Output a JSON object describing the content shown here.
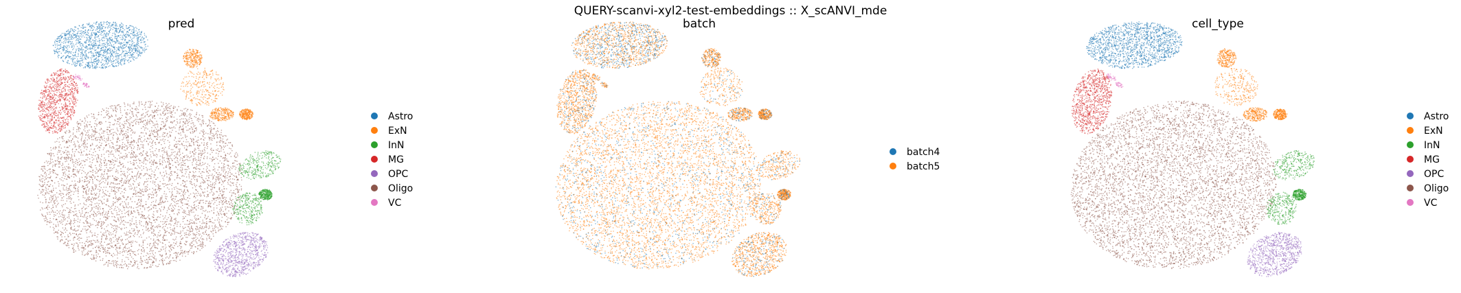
{
  "figure": {
    "suptitle": "QUERY-scanvi-xyl2-test-embeddings :: X_scANVI_mde"
  },
  "colors": {
    "Astro": "#1f77b4",
    "ExN": "#ff7f0e",
    "InN": "#2ca02c",
    "MG": "#d62728",
    "OPC": "#9467bd",
    "Oligo": "#8c564b",
    "VC": "#e377c2",
    "batch4": "#1f77b4",
    "batch5": "#ff7f0e"
  },
  "chart_data": [
    {
      "type": "scatter",
      "title": "pred",
      "color_by": "pred",
      "legend": [
        "Astro",
        "ExN",
        "InN",
        "MG",
        "OPC",
        "Oligo",
        "VC"
      ],
      "legend_placement": "right",
      "axes_visible": false,
      "grid": false
    },
    {
      "type": "scatter",
      "title": "batch",
      "color_by": "batch",
      "legend": [
        "batch4",
        "batch5"
      ],
      "legend_placement": "right",
      "axes_visible": false,
      "grid": false
    },
    {
      "type": "scatter",
      "title": "cell_type",
      "color_by": "cell_type",
      "legend": [
        "Astro",
        "ExN",
        "InN",
        "MG",
        "OPC",
        "Oligo",
        "VC"
      ],
      "legend_placement": "right",
      "axes_visible": false,
      "grid": false
    }
  ]
}
